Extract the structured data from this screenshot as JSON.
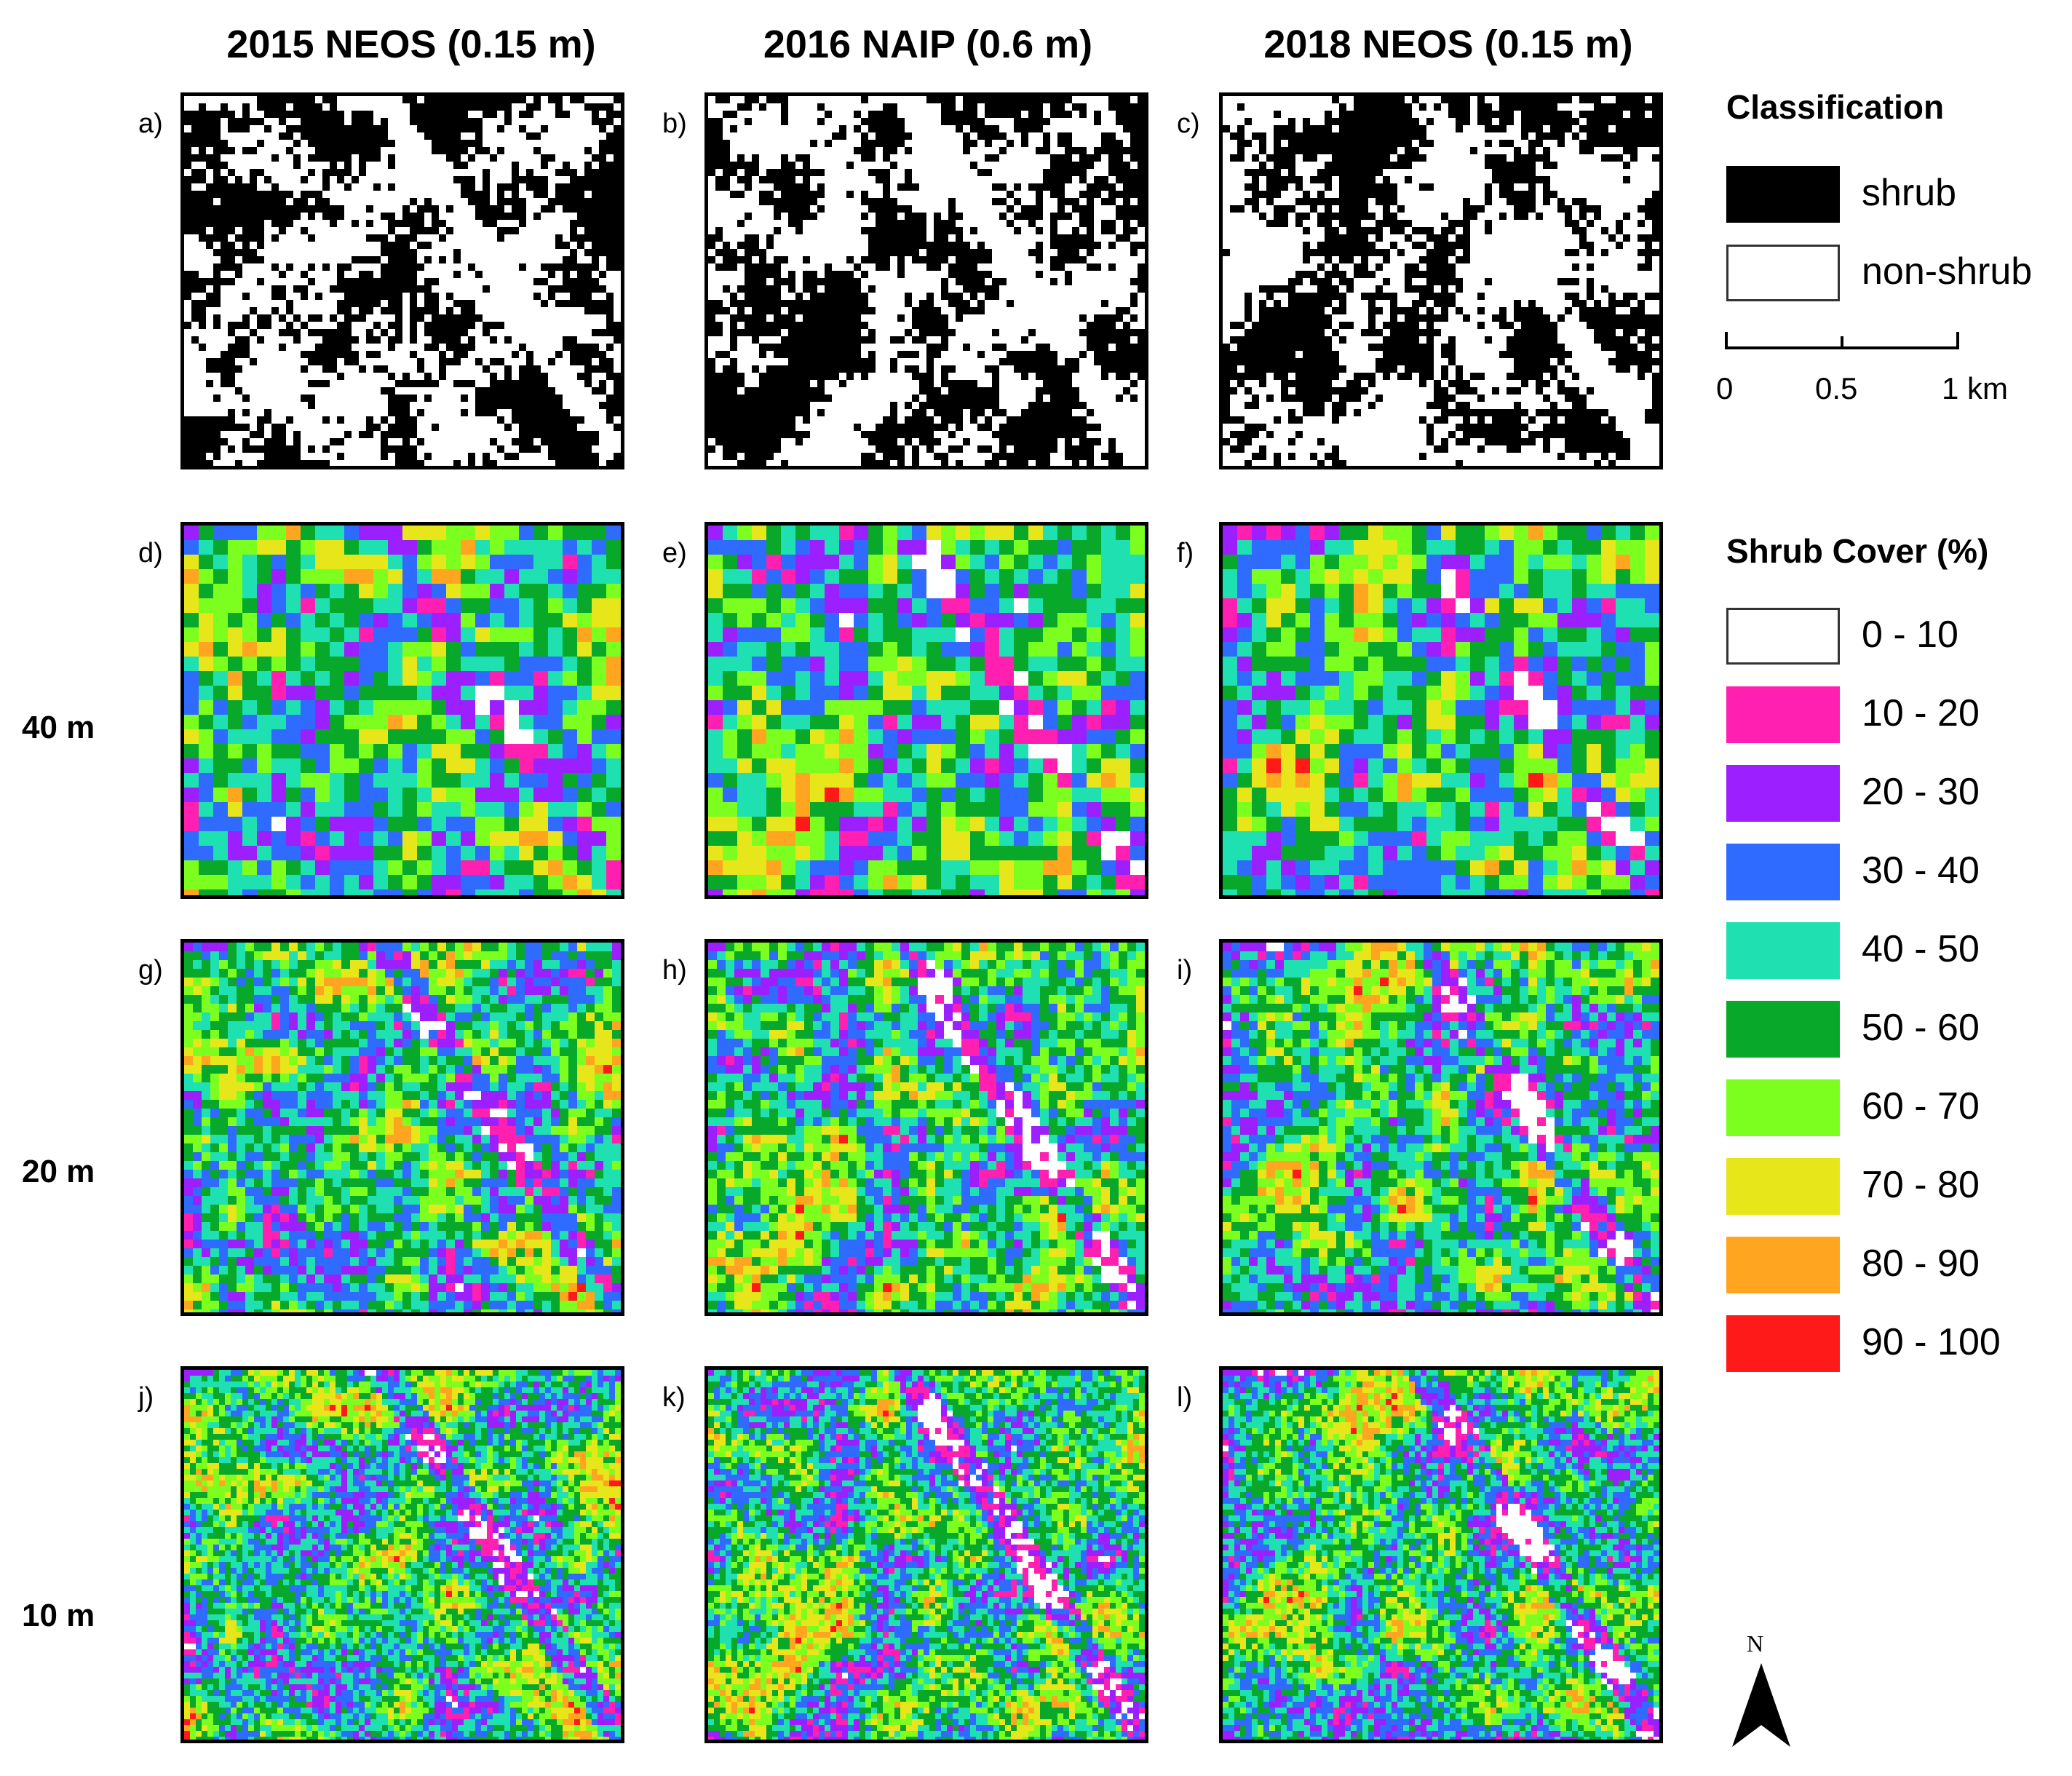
{
  "column_headers": [
    "2015 NEOS (0.15 m)",
    "2016 NAIP (0.6 m)",
    "2018 NEOS (0.15 m)"
  ],
  "row_labels": [
    {
      "row": 1,
      "text": "40 m"
    },
    {
      "row": 2,
      "text": "20 m"
    },
    {
      "row": 3,
      "text": "10 m"
    }
  ],
  "panels": [
    {
      "label": "a)",
      "row": 0,
      "col": 0,
      "type": "classification"
    },
    {
      "label": "b)",
      "row": 0,
      "col": 1,
      "type": "classification"
    },
    {
      "label": "c)",
      "row": 0,
      "col": 2,
      "type": "classification"
    },
    {
      "label": "d)",
      "row": 1,
      "col": 0,
      "type": "cover",
      "resolution": "40 m"
    },
    {
      "label": "e)",
      "row": 1,
      "col": 1,
      "type": "cover",
      "resolution": "40 m"
    },
    {
      "label": "f)",
      "row": 1,
      "col": 2,
      "type": "cover",
      "resolution": "40 m"
    },
    {
      "label": "g)",
      "row": 2,
      "col": 0,
      "type": "cover",
      "resolution": "20 m"
    },
    {
      "label": "h)",
      "row": 2,
      "col": 1,
      "type": "cover",
      "resolution": "20 m"
    },
    {
      "label": "i)",
      "row": 2,
      "col": 2,
      "type": "cover",
      "resolution": "20 m"
    },
    {
      "label": "j)",
      "row": 3,
      "col": 0,
      "type": "cover",
      "resolution": "10 m"
    },
    {
      "label": "k)",
      "row": 3,
      "col": 1,
      "type": "cover",
      "resolution": "10 m"
    },
    {
      "label": "l)",
      "row": 3,
      "col": 2,
      "type": "cover",
      "resolution": "10 m"
    }
  ],
  "legend_classification": {
    "title": "Classification",
    "items": [
      {
        "label": "shrub",
        "color": "#000000"
      },
      {
        "label": "non-shrub",
        "color": "#ffffff"
      }
    ]
  },
  "scale_bar": {
    "labels": [
      "0",
      "0.5",
      "1 km"
    ]
  },
  "legend_cover": {
    "title": "Shrub Cover (%)",
    "items": [
      {
        "label": "0 - 10",
        "color": "#ffffff"
      },
      {
        "label": "10 - 20",
        "color": "#ff1fb0"
      },
      {
        "label": "20 - 30",
        "color": "#9b1fff"
      },
      {
        "label": "30 - 40",
        "color": "#2f6bff"
      },
      {
        "label": "40 - 50",
        "color": "#1fe0b0"
      },
      {
        "label": "50 - 60",
        "color": "#08a82a"
      },
      {
        "label": "60 - 70",
        "color": "#7cff1f"
      },
      {
        "label": "70 - 80",
        "color": "#e6e61a"
      },
      {
        "label": "80 - 90",
        "color": "#ffa51f"
      },
      {
        "label": "90 - 100",
        "color": "#ff1a1a"
      }
    ]
  },
  "north_arrow": {
    "label": "N"
  }
}
